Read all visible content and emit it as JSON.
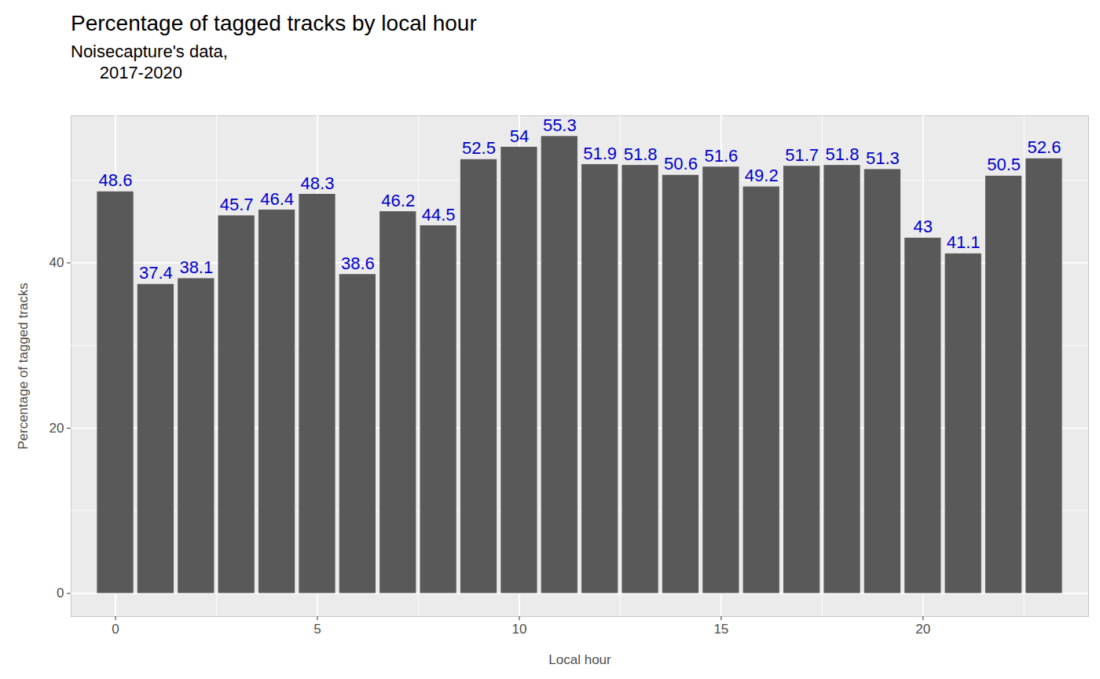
{
  "chart_data": {
    "type": "bar",
    "title": "Percentage of tagged tracks by local hour",
    "subtitle": "Noisecapture's data,\n      2017-2020",
    "x_label": "Local hour",
    "y_label": "Percentage of tagged tracks",
    "x": [
      0,
      1,
      2,
      3,
      4,
      5,
      6,
      7,
      8,
      9,
      10,
      11,
      12,
      13,
      14,
      15,
      16,
      17,
      18,
      19,
      20,
      21,
      22,
      23
    ],
    "values": [
      48.6,
      37.4,
      38.1,
      45.7,
      46.4,
      48.3,
      38.6,
      46.2,
      44.5,
      52.5,
      54,
      55.3,
      51.9,
      51.8,
      50.6,
      51.6,
      49.2,
      51.7,
      51.8,
      51.3,
      43,
      41.1,
      50.5,
      52.6
    ],
    "color": "#595959",
    "data_labels": true,
    "label_color": "#0000CD",
    "xlim": [
      -1.1,
      24.1
    ],
    "xticks": [
      0,
      5,
      10,
      15,
      20
    ],
    "ylim": [
      -2.8,
      57.8
    ],
    "yticks": [
      0,
      20,
      40
    ],
    "grid": true
  }
}
